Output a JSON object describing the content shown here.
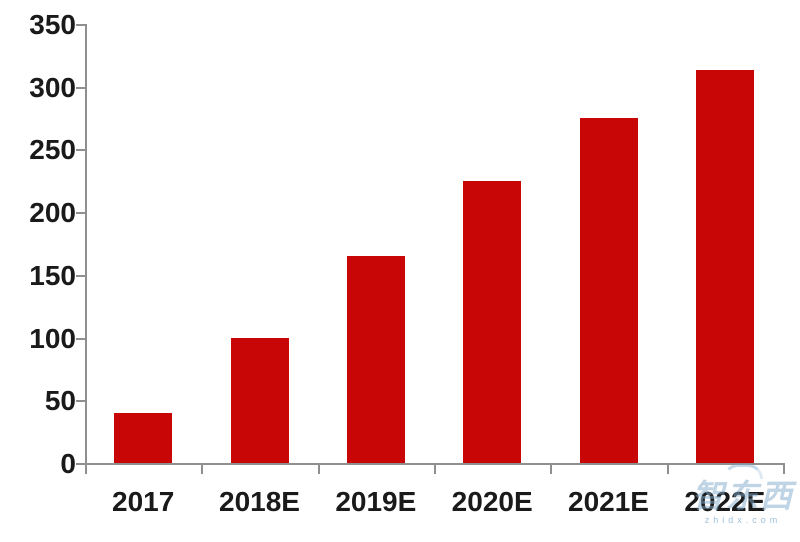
{
  "chart_data": {
    "type": "bar",
    "categories": [
      "2017",
      "2018E",
      "2019E",
      "2020E",
      "2021E",
      "2022E"
    ],
    "values": [
      40,
      100,
      165,
      225,
      275,
      313
    ],
    "yticks": [
      0,
      50,
      100,
      150,
      200,
      250,
      300,
      350
    ],
    "ylim": [
      0,
      350
    ],
    "title": "",
    "xlabel": "",
    "ylabel": "",
    "grid": false,
    "legend": "none",
    "bar_color": "#c90606",
    "axis_color": "#8f8f8f",
    "label_color": "#1a1a1a"
  },
  "watermark": {
    "text": "智东西",
    "subtext": "zhidx.com",
    "color": "#7fa9c9"
  }
}
